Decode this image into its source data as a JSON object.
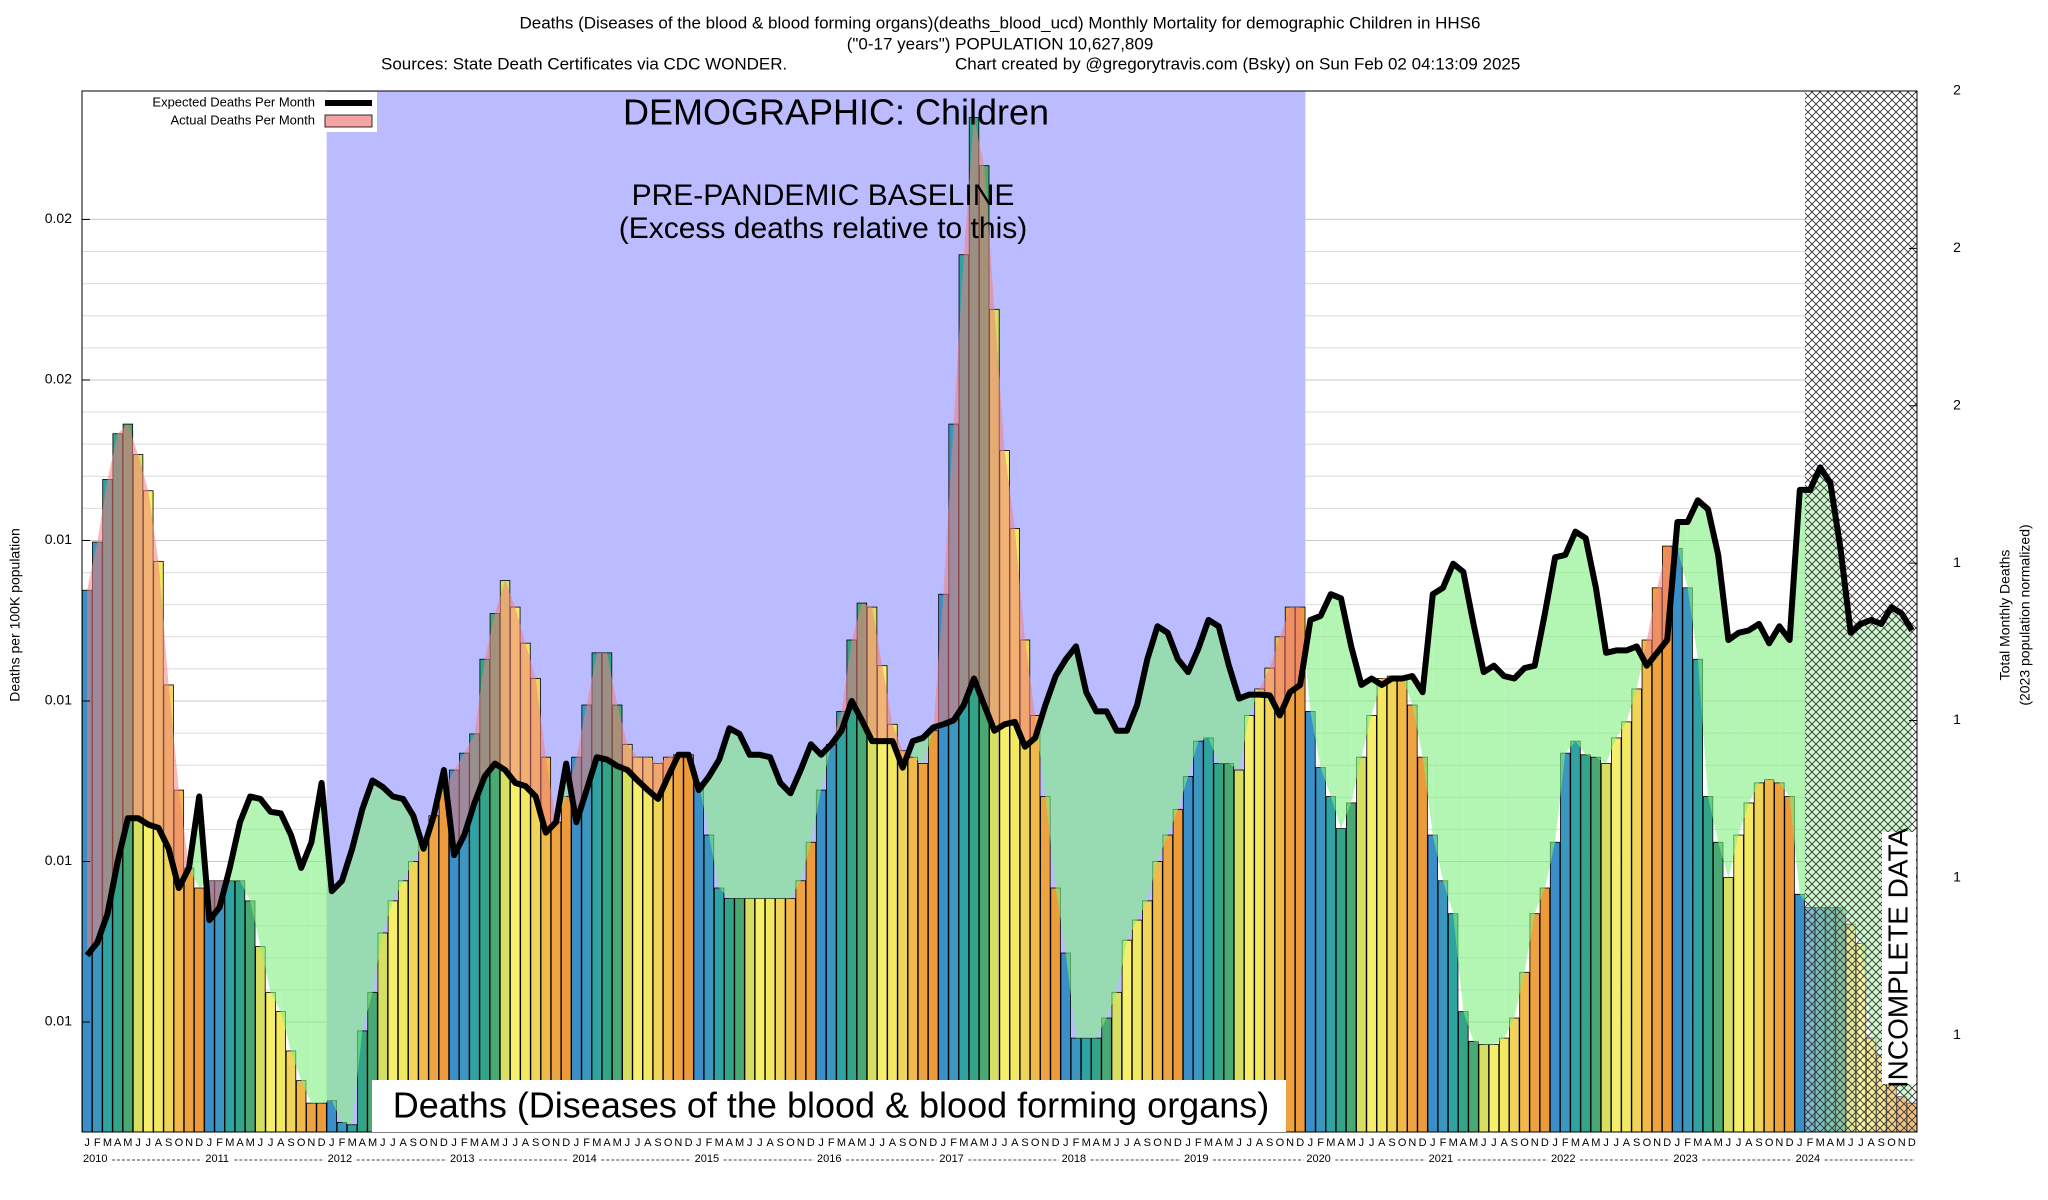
{
  "chart_data": {
    "type": "bar",
    "title": "Deaths (Diseases of the blood & blood forming organs)(deaths_blood_ucd) Monthly Mortality for demographic Children in HHS6",
    "subtitle": "(\"0-17 years\") POPULATION 10,627,809",
    "source": "Sources: State Death Certificates via CDC WONDER.",
    "credit": "Chart created by @gregorytravis.com (Bsky) on Sun Feb 02 04:13:09 2025",
    "ylabel": "Deaths per 100K population",
    "y2label": [
      "Total Monthly Deaths",
      "(2023 population normalized)"
    ],
    "annotations": {
      "demographic": "DEMOGRAPHIC: Children",
      "baseline": "PRE-PANDEMIC BASELINE",
      "baseline_note": "(Excess deaths relative to this)",
      "cause": "Deaths (Diseases of the blood & blood forming organs)",
      "incomplete": "INCOMPLETE DATA"
    },
    "baseline_months": [
      24,
      119
    ],
    "incomplete_from": 169,
    "categories": [
      "J",
      "F",
      "M",
      "A",
      "M",
      "J",
      "J",
      "A",
      "S",
      "O",
      "N",
      "D",
      "J",
      "F",
      "M",
      "A",
      "M",
      "J",
      "J",
      "A",
      "S",
      "O",
      "N",
      "D",
      "J",
      "F",
      "M",
      "A",
      "M",
      "J",
      "J",
      "A",
      "S",
      "O",
      "N",
      "D",
      "J",
      "F",
      "M",
      "A",
      "M",
      "J",
      "J",
      "A",
      "S",
      "O",
      "N",
      "D",
      "J",
      "F",
      "M",
      "A",
      "M",
      "J",
      "J",
      "A",
      "S",
      "O",
      "N",
      "D",
      "J",
      "F",
      "M",
      "A",
      "M",
      "J",
      "J",
      "A",
      "S",
      "O",
      "N",
      "D",
      "J",
      "F",
      "M",
      "A",
      "M",
      "J",
      "J",
      "A",
      "S",
      "O",
      "N",
      "D",
      "J",
      "F",
      "M",
      "A",
      "M",
      "J",
      "J",
      "A",
      "S",
      "O",
      "N",
      "D",
      "J",
      "F",
      "M",
      "A",
      "M",
      "J",
      "J",
      "A",
      "S",
      "O",
      "N",
      "D",
      "J",
      "F",
      "M",
      "A",
      "M",
      "J",
      "J",
      "A",
      "S",
      "O",
      "N",
      "D",
      "J",
      "F",
      "M",
      "A",
      "M",
      "J",
      "J",
      "A",
      "S",
      "O",
      "N",
      "D",
      "J",
      "F",
      "M",
      "A",
      "M",
      "J",
      "J",
      "A",
      "S",
      "O",
      "N",
      "D",
      "J",
      "F",
      "M",
      "A",
      "M",
      "J",
      "J",
      "A",
      "S",
      "O",
      "N",
      "D",
      "J",
      "F",
      "M",
      "A",
      "M",
      "J",
      "J",
      "A",
      "S",
      "O",
      "N",
      "D",
      "J",
      "F",
      "M",
      "A",
      "M",
      "J",
      "J",
      "A",
      "S",
      "O",
      "N",
      "D"
    ],
    "years": [
      "2010",
      "2011",
      "2012",
      "2013",
      "2014",
      "2015",
      "2016",
      "2017",
      "2018",
      "2019",
      "2020",
      "2021",
      "2022",
      "2023",
      "2024"
    ],
    "month_colors": [
      "#3a8fc8",
      "#3c97c0",
      "#2fa3a2",
      "#34a488",
      "#4aa872",
      "#d6df62",
      "#f5ef6c",
      "#f3e862",
      "#f0d55a",
      "#f0b94a",
      "#eea342",
      "#ec9a3a"
    ],
    "excess_color": "#f08080",
    "deficit_color": "#80f080",
    "baseline_color": "#bbbbff",
    "series": [
      {
        "name": "Actual Deaths Per Month",
        "color": "#f4a4a4",
        "values": [
          0.01338,
          0.01398,
          0.01476,
          0.01533,
          0.01545,
          0.01507,
          0.01462,
          0.01374,
          0.0122,
          0.01089,
          0.00992,
          0.00967,
          0.00976,
          0.00976,
          0.00976,
          0.00976,
          0.00951,
          0.00894,
          0.00837,
          0.00813,
          0.00764,
          0.00727,
          0.00699,
          0.00699,
          0.00702,
          0.00675,
          0.00672,
          0.00789,
          0.00837,
          0.00911,
          0.00951,
          0.00976,
          0.01,
          0.01024,
          0.01057,
          0.01089,
          0.01114,
          0.01135,
          0.01159,
          0.01252,
          0.01309,
          0.0135,
          0.01317,
          0.01272,
          0.01228,
          0.0113,
          0.01049,
          0.01081,
          0.0113,
          0.01195,
          0.0126,
          0.0126,
          0.01195,
          0.01146,
          0.0113,
          0.0113,
          0.01122,
          0.0113,
          0.01133,
          0.01133,
          0.01098,
          0.01033,
          0.00967,
          0.00954,
          0.00954,
          0.00954,
          0.00954,
          0.00954,
          0.00954,
          0.00954,
          0.00976,
          0.01024,
          0.01089,
          0.01146,
          0.01187,
          0.01276,
          0.01322,
          0.01317,
          0.01244,
          0.01171,
          0.01138,
          0.0113,
          0.01122,
          0.01163,
          0.01333,
          0.01545,
          0.01756,
          0.01927,
          0.01867,
          0.01688,
          0.01512,
          0.01415,
          0.01276,
          0.01182,
          0.01081,
          0.00967,
          0.00886,
          0.0078,
          0.0078,
          0.0078,
          0.00805,
          0.00837,
          0.00902,
          0.00927,
          0.00951,
          0.01,
          0.01033,
          0.01065,
          0.01106,
          0.0115,
          0.01154,
          0.01122,
          0.01122,
          0.01114,
          0.01182,
          0.01215,
          0.01241,
          0.0128,
          0.01317,
          0.01317,
          0.01187,
          0.01117,
          0.01081,
          0.01041,
          0.01073,
          0.0113,
          0.01182,
          0.01228,
          0.01231,
          0.01231,
          0.01195,
          0.0113,
          0.01033,
          0.00976,
          0.00935,
          0.00813,
          0.00776,
          0.00772,
          0.00772,
          0.0078,
          0.00805,
          0.00862,
          0.00935,
          0.00967,
          0.01024,
          0.01135,
          0.0115,
          0.01133,
          0.0113,
          0.01122,
          0.01154,
          0.01174,
          0.01215,
          0.01276,
          0.01341,
          0.01393,
          0.0139,
          0.01341,
          0.01252,
          0.01081,
          0.01024,
          0.0098,
          0.01033,
          0.01073,
          0.01098,
          0.01102,
          0.01098,
          0.01081,
          0.00959,
          0.00943,
          0.00943,
          0.00943,
          0.00943,
          0.00922,
          0.00898,
          0.0078,
          0.00759,
          0.0074,
          0.00707,
          0.00699
        ]
      },
      {
        "name": "Expected Deaths Per Month",
        "type": "line",
        "color": "#000000",
        "values": [
          0.00883,
          0.00899,
          0.00935,
          0.01,
          0.01054,
          0.01054,
          0.01046,
          0.01042,
          0.01016,
          0.00967,
          0.00992,
          0.01081,
          0.00927,
          0.00943,
          0.00992,
          0.01049,
          0.01081,
          0.01078,
          0.01062,
          0.0106,
          0.01033,
          0.00992,
          0.01024,
          0.01098,
          0.00963,
          0.00976,
          0.01016,
          0.01065,
          0.01101,
          0.01093,
          0.01081,
          0.01078,
          0.01057,
          0.01016,
          0.01057,
          0.01114,
          0.01008,
          0.01033,
          0.01073,
          0.01106,
          0.01122,
          0.01114,
          0.01098,
          0.01094,
          0.01081,
          0.01036,
          0.01049,
          0.01122,
          0.01049,
          0.01089,
          0.0113,
          0.01127,
          0.01119,
          0.01114,
          0.01101,
          0.01089,
          0.01078,
          0.01106,
          0.01133,
          0.01133,
          0.01089,
          0.01106,
          0.01127,
          0.01166,
          0.01159,
          0.01133,
          0.01133,
          0.0113,
          0.01098,
          0.01085,
          0.01114,
          0.01146,
          0.01133,
          0.01146,
          0.01163,
          0.012,
          0.01176,
          0.0115,
          0.0115,
          0.0115,
          0.01117,
          0.0115,
          0.01154,
          0.01167,
          0.01171,
          0.01176,
          0.01195,
          0.01228,
          0.01195,
          0.01163,
          0.01171,
          0.01174,
          0.01143,
          0.01154,
          0.01195,
          0.01231,
          0.01252,
          0.01268,
          0.01211,
          0.01187,
          0.01187,
          0.01163,
          0.01163,
          0.01195,
          0.01252,
          0.01293,
          0.01285,
          0.01252,
          0.01236,
          0.01265,
          0.01301,
          0.01293,
          0.01244,
          0.01203,
          0.01208,
          0.01208,
          0.01207,
          0.01182,
          0.01211,
          0.0122,
          0.01301,
          0.01306,
          0.01333,
          0.01328,
          0.01268,
          0.0122,
          0.01228,
          0.0122,
          0.01228,
          0.01228,
          0.01231,
          0.01211,
          0.01333,
          0.01341,
          0.01371,
          0.01361,
          0.01296,
          0.01236,
          0.01244,
          0.01231,
          0.01228,
          0.01241,
          0.01244,
          0.01309,
          0.01379,
          0.01382,
          0.01411,
          0.01403,
          0.01341,
          0.0126,
          0.01263,
          0.01263,
          0.01268,
          0.01244,
          0.0126,
          0.01276,
          0.01423,
          0.01423,
          0.0145,
          0.01439,
          0.01382,
          0.01276,
          0.01285,
          0.01288,
          0.01296,
          0.01272,
          0.01293,
          0.01276,
          0.01463,
          0.01463,
          0.01491,
          0.01472,
          0.0139,
          0.01285,
          0.01296,
          0.01301,
          0.01296,
          0.01317,
          0.01309,
          0.01288
        ]
      }
    ],
    "ylim": [
      0.00663,
      0.0196
    ],
    "yticks": [
      {
        "value": 0.008,
        "label": "0.01"
      },
      {
        "value": 0.01,
        "label": "0.01"
      },
      {
        "value": 0.012,
        "label": "0.01"
      },
      {
        "value": 0.014,
        "label": "0.01"
      },
      {
        "value": 0.016,
        "label": "0.02"
      },
      {
        "value": 0.018,
        "label": "0.02"
      }
    ],
    "y2lim": [
      0.677,
      2.0
    ],
    "y2ticks": [
      {
        "value": 0.8,
        "label": "1"
      },
      {
        "value": 1.0,
        "label": "1"
      },
      {
        "value": 1.2,
        "label": "1"
      },
      {
        "value": 1.4,
        "label": "1"
      },
      {
        "value": 1.6,
        "label": "2"
      },
      {
        "value": 1.8,
        "label": "2"
      },
      {
        "value": 2.0,
        "label": "2"
      }
    ],
    "grid": true,
    "legend": "upper left"
  }
}
